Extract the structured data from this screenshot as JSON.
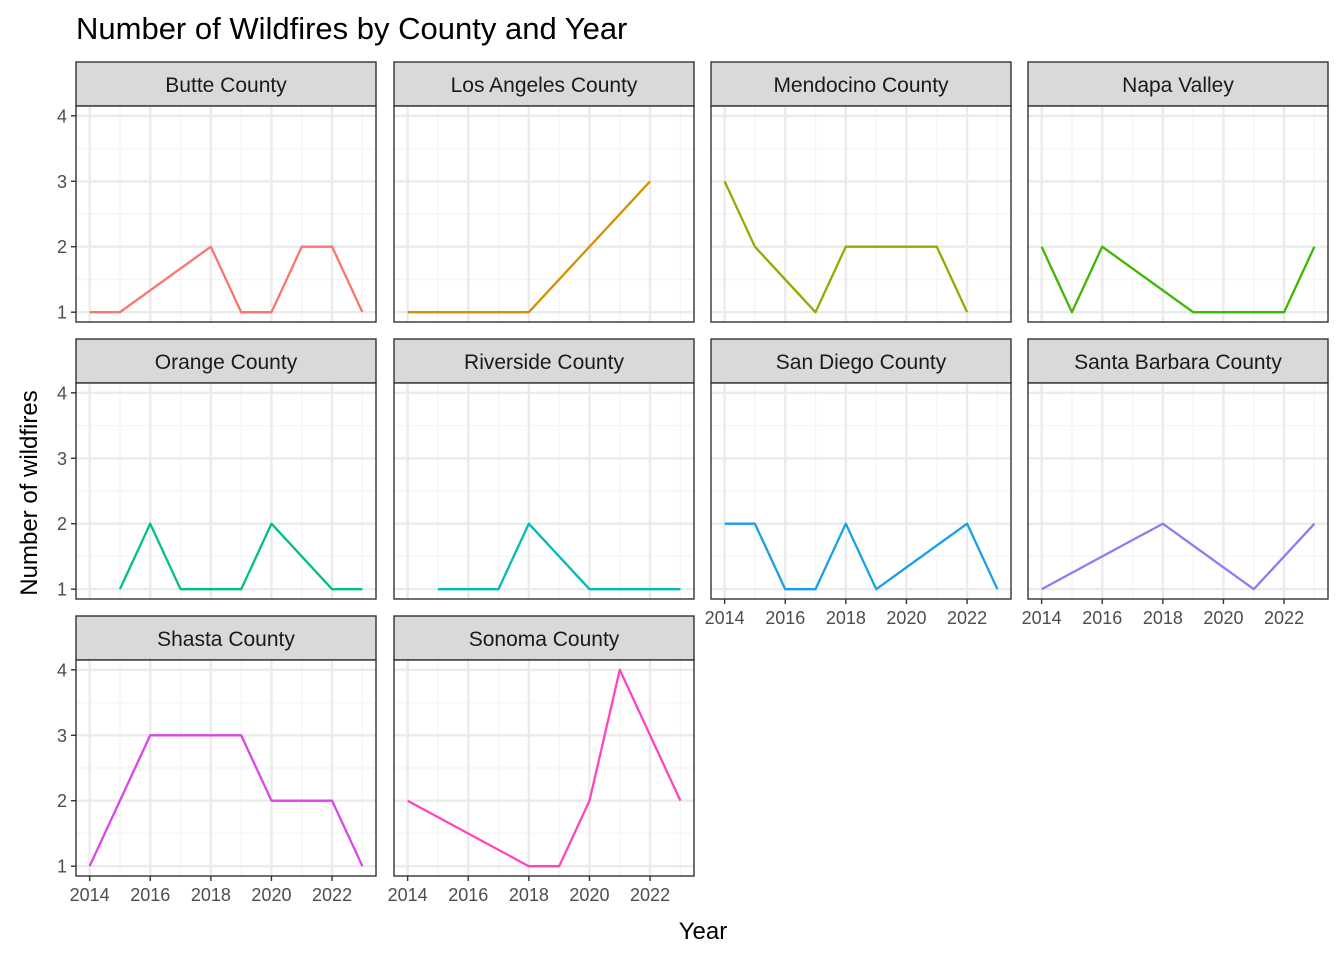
{
  "chart_data": {
    "type": "line",
    "title": "Number of Wildfires by County and Year",
    "xlabel": "Year",
    "ylabel": "Number of wildfires",
    "xlim": [
      2013.55,
      2023.45
    ],
    "ylim": [
      0.85,
      4.15
    ],
    "x_ticks": [
      2014,
      2016,
      2018,
      2020,
      2022
    ],
    "y_ticks": [
      1,
      2,
      3,
      4
    ],
    "grid": true,
    "theme": "bw",
    "colors": {
      "strip_fill": "#d9d9d9",
      "panel_border": "#333333",
      "grid_major": "#ebebeb",
      "grid_minor": "#f5f5f5"
    },
    "panels": [
      {
        "name": "Butte County",
        "color": "#f8766d",
        "x": [
          2014,
          2015,
          2018,
          2019,
          2020,
          2021,
          2022,
          2023
        ],
        "y": [
          1,
          1,
          2,
          1,
          1,
          2,
          2,
          1
        ]
      },
      {
        "name": "Los Angeles County",
        "color": "#d39200",
        "x": [
          2014,
          2018,
          2022
        ],
        "y": [
          1,
          1,
          3
        ]
      },
      {
        "name": "Mendocino County",
        "color": "#93aa00",
        "x": [
          2014,
          2015,
          2017,
          2018,
          2021,
          2022
        ],
        "y": [
          3,
          2,
          1,
          2,
          2,
          1
        ]
      },
      {
        "name": "Napa Valley",
        "color": "#3db800",
        "x": [
          2014,
          2015,
          2016,
          2019,
          2022,
          2023
        ],
        "y": [
          2,
          1,
          2,
          1,
          1,
          2
        ]
      },
      {
        "name": "Orange County",
        "color": "#00c17f",
        "x": [
          2015,
          2016,
          2017,
          2019,
          2020,
          2022,
          2023
        ],
        "y": [
          1,
          2,
          1,
          1,
          2,
          1,
          1
        ]
      },
      {
        "name": "Riverside County",
        "color": "#00bbb9",
        "x": [
          2015,
          2017,
          2018,
          2020,
          2023
        ],
        "y": [
          1,
          1,
          2,
          1,
          1
        ]
      },
      {
        "name": "San Diego County",
        "color": "#199fe7",
        "x": [
          2014,
          2015,
          2016,
          2017,
          2018,
          2019,
          2022,
          2023
        ],
        "y": [
          2,
          2,
          1,
          1,
          2,
          1,
          2,
          1
        ]
      },
      {
        "name": "Santa Barbara County",
        "color": "#8e7cf5",
        "x": [
          2014,
          2018,
          2021,
          2023
        ],
        "y": [
          1,
          2,
          1,
          2
        ]
      },
      {
        "name": "Shasta County",
        "color": "#da46e9",
        "x": [
          2014,
          2016,
          2019,
          2020,
          2022,
          2023
        ],
        "y": [
          1,
          3,
          3,
          2,
          2,
          1
        ]
      },
      {
        "name": "Sonoma County",
        "color": "#ff44c1",
        "x": [
          2014,
          2018,
          2019,
          2020,
          2021,
          2023
        ],
        "y": [
          2,
          1,
          1,
          2,
          4,
          2
        ]
      }
    ]
  }
}
